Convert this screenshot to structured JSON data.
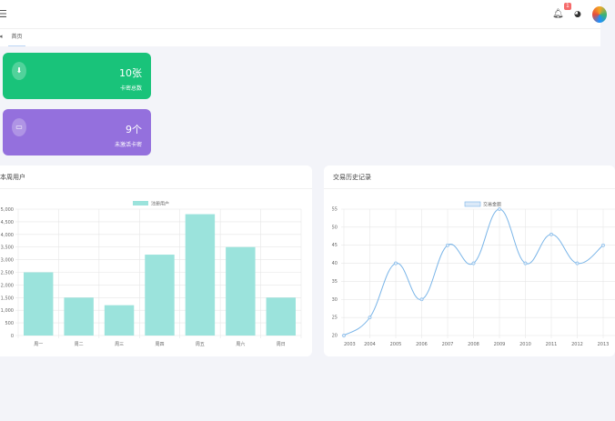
{
  "header": {
    "menu_icon": "hamburger-icon",
    "notification_count": "1"
  },
  "tabs": [
    {
      "label": "首页"
    }
  ],
  "stats": [
    {
      "value": "10张",
      "label": "卡密总数",
      "icon": "download-icon",
      "color": "#19c37a"
    },
    {
      "value": "9个",
      "label": "未激活卡密",
      "icon": "message-icon",
      "color": "#9470dd"
    }
  ],
  "chart_data": [
    {
      "type": "bar",
      "title": "本周用户",
      "legend": [
        "注册用户"
      ],
      "categories": [
        "周一",
        "周二",
        "周三",
        "周四",
        "周五",
        "周六",
        "周日"
      ],
      "values": [
        2500,
        1500,
        1200,
        3200,
        4800,
        3500,
        1500
      ],
      "ylim": [
        0,
        5000
      ],
      "yticks": [
        "0",
        "500",
        "1,000",
        "1,500",
        "2,000",
        "2,500",
        "3,000",
        "3,500",
        "4,000",
        "4,500",
        "5,000"
      ],
      "color": "#9be3dc"
    },
    {
      "type": "line",
      "title": "交易历史记录",
      "legend": [
        "交易金额"
      ],
      "categories": [
        "2003",
        "2004",
        "2005",
        "2006",
        "2007",
        "2008",
        "2009",
        "2010",
        "2011",
        "2012",
        "2013"
      ],
      "values": [
        20,
        25,
        40,
        30,
        45,
        40,
        55,
        40,
        48,
        40,
        45
      ],
      "ylim": [
        20,
        55
      ],
      "yticks": [
        "20",
        "25",
        "30",
        "35",
        "40",
        "45",
        "50",
        "55"
      ],
      "color": "#7ab5e8"
    }
  ]
}
